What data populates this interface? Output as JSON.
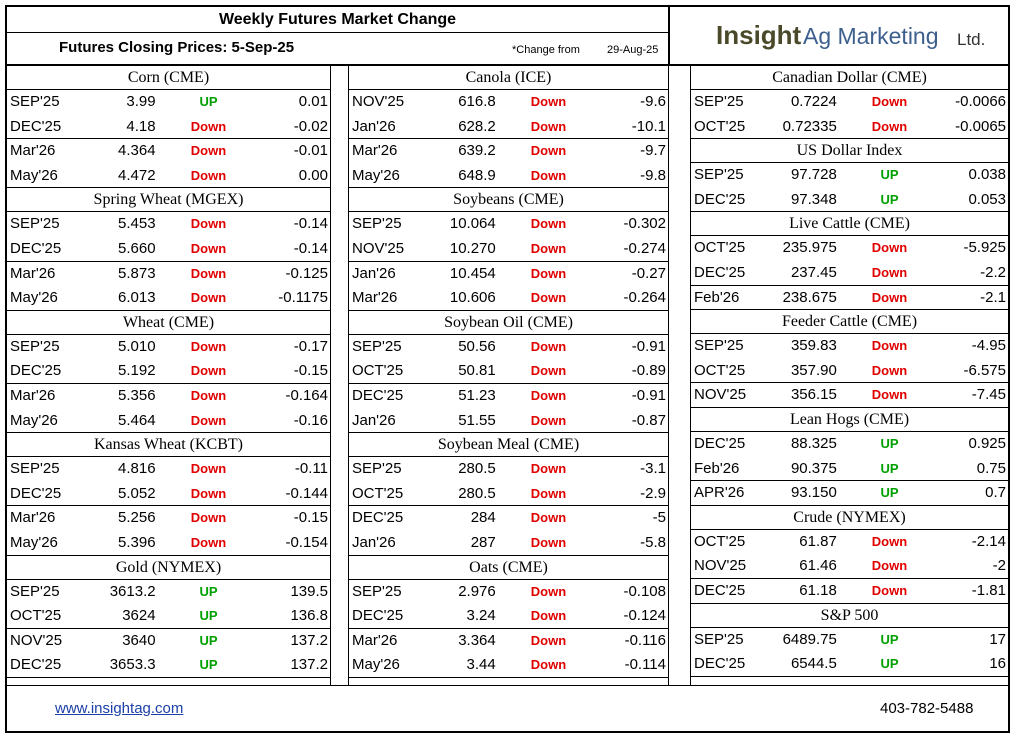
{
  "header": {
    "title": "Weekly Futures Market Change",
    "subtitle": "Futures Closing Prices:  5-Sep-25",
    "change_from": "*Change from",
    "change_date": "29-Aug-25",
    "logo_insight": "Insight",
    "logo_ag": "Ag Marketing",
    "logo_ltd": "Ltd."
  },
  "colors": {
    "up": "#00a000",
    "down": "#e00000",
    "logo_dark": "#4a4a2a",
    "logo_blue": "#3d5f8e",
    "link": "#1a3fa8"
  },
  "columns": [
    {
      "blocks": [
        {
          "title": "Corn (CME)",
          "rows": [
            {
              "month": "SEP'25",
              "price": "3.99",
              "dir": "UP",
              "chg": "0.01"
            },
            {
              "month": "DEC'25",
              "price": "4.18",
              "dir": "Down",
              "chg": "-0.02"
            },
            {
              "month": "Mar'26",
              "price": "4.364",
              "dir": "Down",
              "chg": "-0.01"
            },
            {
              "month": "May'26",
              "price": "4.472",
              "dir": "Down",
              "chg": "0.00"
            }
          ]
        },
        {
          "title": "Spring Wheat (MGEX)",
          "rows": [
            {
              "month": "SEP'25",
              "price": "5.453",
              "dir": "Down",
              "chg": "-0.14"
            },
            {
              "month": "DEC'25",
              "price": "5.660",
              "dir": "Down",
              "chg": "-0.14"
            },
            {
              "month": "Mar'26",
              "price": "5.873",
              "dir": "Down",
              "chg": "-0.125"
            },
            {
              "month": "May'26",
              "price": "6.013",
              "dir": "Down",
              "chg": "-0.1175"
            }
          ]
        },
        {
          "title": "Wheat (CME)",
          "rows": [
            {
              "month": "SEP'25",
              "price": "5.010",
              "dir": "Down",
              "chg": "-0.17"
            },
            {
              "month": "DEC'25",
              "price": "5.192",
              "dir": "Down",
              "chg": "-0.15"
            },
            {
              "month": "Mar'26",
              "price": "5.356",
              "dir": "Down",
              "chg": "-0.164"
            },
            {
              "month": "May'26",
              "price": "5.464",
              "dir": "Down",
              "chg": "-0.16"
            }
          ]
        },
        {
          "title": "Kansas Wheat (KCBT)",
          "rows": [
            {
              "month": "SEP'25",
              "price": "4.816",
              "dir": "Down",
              "chg": "-0.11"
            },
            {
              "month": "DEC'25",
              "price": "5.052",
              "dir": "Down",
              "chg": "-0.144"
            },
            {
              "month": "Mar'26",
              "price": "5.256",
              "dir": "Down",
              "chg": "-0.15"
            },
            {
              "month": "May'26",
              "price": "5.396",
              "dir": "Down",
              "chg": "-0.154"
            }
          ]
        },
        {
          "title": "Gold (NYMEX)",
          "rows": [
            {
              "month": "SEP'25",
              "price": "3613.2",
              "dir": "UP",
              "chg": "139.5"
            },
            {
              "month": "OCT'25",
              "price": "3624",
              "dir": "UP",
              "chg": "136.8"
            },
            {
              "month": "NOV'25",
              "price": "3640",
              "dir": "UP",
              "chg": "137.2"
            },
            {
              "month": "DEC'25",
              "price": "3653.3",
              "dir": "UP",
              "chg": "137.2"
            }
          ]
        }
      ]
    },
    {
      "blocks": [
        {
          "title": "Canola (ICE)",
          "rows": [
            {
              "month": "NOV'25",
              "price": "616.8",
              "dir": "Down",
              "chg": "-9.6"
            },
            {
              "month": "Jan'26",
              "price": "628.2",
              "dir": "Down",
              "chg": "-10.1"
            },
            {
              "month": "Mar'26",
              "price": "639.2",
              "dir": "Down",
              "chg": "-9.7"
            },
            {
              "month": "May'26",
              "price": "648.9",
              "dir": "Down",
              "chg": "-9.8"
            }
          ]
        },
        {
          "title": "Soybeans (CME)",
          "rows": [
            {
              "month": "SEP'25",
              "price": "10.064",
              "dir": "Down",
              "chg": "-0.302"
            },
            {
              "month": "NOV'25",
              "price": "10.270",
              "dir": "Down",
              "chg": "-0.274"
            },
            {
              "month": "Jan'26",
              "price": "10.454",
              "dir": "Down",
              "chg": "-0.27"
            },
            {
              "month": "Mar'26",
              "price": "10.606",
              "dir": "Down",
              "chg": "-0.264"
            }
          ]
        },
        {
          "title": "Soybean Oil (CME)",
          "rows": [
            {
              "month": "SEP'25",
              "price": "50.56",
              "dir": "Down",
              "chg": "-0.91"
            },
            {
              "month": "OCT'25",
              "price": "50.81",
              "dir": "Down",
              "chg": "-0.89"
            },
            {
              "month": "DEC'25",
              "price": "51.23",
              "dir": "Down",
              "chg": "-0.91"
            },
            {
              "month": "Jan'26",
              "price": "51.55",
              "dir": "Down",
              "chg": "-0.87"
            }
          ]
        },
        {
          "title": "Soybean Meal (CME)",
          "rows": [
            {
              "month": "SEP'25",
              "price": "280.5",
              "dir": "Down",
              "chg": "-3.1"
            },
            {
              "month": "OCT'25",
              "price": "280.5",
              "dir": "Down",
              "chg": "-2.9"
            },
            {
              "month": "DEC'25",
              "price": "284",
              "dir": "Down",
              "chg": "-5"
            },
            {
              "month": "Jan'26",
              "price": "287",
              "dir": "Down",
              "chg": "-5.8"
            }
          ]
        },
        {
          "title": "Oats (CME)",
          "rows": [
            {
              "month": "SEP'25",
              "price": "2.976",
              "dir": "Down",
              "chg": "-0.108"
            },
            {
              "month": "DEC'25",
              "price": "3.24",
              "dir": "Down",
              "chg": "-0.124"
            },
            {
              "month": "Mar'26",
              "price": "3.364",
              "dir": "Down",
              "chg": "-0.116"
            },
            {
              "month": "May'26",
              "price": "3.44",
              "dir": "Down",
              "chg": "-0.114"
            }
          ]
        }
      ]
    },
    {
      "blocks": [
        {
          "title": "Canadian Dollar (CME)",
          "rows": [
            {
              "month": "SEP'25",
              "price": "0.7224",
              "dir": "Down",
              "chg": "-0.0066"
            },
            {
              "month": "OCT'25",
              "price": "0.72335",
              "dir": "Down",
              "chg": "-0.0065"
            }
          ]
        },
        {
          "title": "US Dollar Index",
          "rows": [
            {
              "month": "SEP'25",
              "price": "97.728",
              "dir": "UP",
              "chg": "0.038"
            },
            {
              "month": "DEC'25",
              "price": "97.348",
              "dir": "UP",
              "chg": "0.053"
            }
          ]
        },
        {
          "title": "Live Cattle (CME)",
          "rows": [
            {
              "month": "OCT'25",
              "price": "235.975",
              "dir": "Down",
              "chg": "-5.925"
            },
            {
              "month": "DEC'25",
              "price": "237.45",
              "dir": "Down",
              "chg": "-2.2"
            },
            {
              "month": "Feb'26",
              "price": "238.675",
              "dir": "Down",
              "chg": "-2.1"
            }
          ]
        },
        {
          "title": "Feeder Cattle (CME)",
          "rows": [
            {
              "month": "SEP'25",
              "price": "359.83",
              "dir": "Down",
              "chg": "-4.95"
            },
            {
              "month": "OCT'25",
              "price": "357.90",
              "dir": "Down",
              "chg": "-6.575"
            },
            {
              "month": "NOV'25",
              "price": "356.15",
              "dir": "Down",
              "chg": "-7.45"
            }
          ]
        },
        {
          "title": "Lean Hogs (CME)",
          "rows": [
            {
              "month": "DEC'25",
              "price": "88.325",
              "dir": "UP",
              "chg": "0.925"
            },
            {
              "month": "Feb'26",
              "price": "90.375",
              "dir": "UP",
              "chg": "0.75"
            },
            {
              "month": "APR'26",
              "price": "93.150",
              "dir": "UP",
              "chg": "0.7"
            }
          ]
        },
        {
          "title": "Crude (NYMEX)",
          "rows": [
            {
              "month": "OCT'25",
              "price": "61.87",
              "dir": "Down",
              "chg": "-2.14"
            },
            {
              "month": "NOV'25",
              "price": "61.46",
              "dir": "Down",
              "chg": "-2"
            },
            {
              "month": "DEC'25",
              "price": "61.18",
              "dir": "Down",
              "chg": "-1.81"
            }
          ]
        },
        {
          "title": "S&P 500",
          "rows": [
            {
              "month": "SEP'25",
              "price": "6489.75",
              "dir": "UP",
              "chg": "17"
            },
            {
              "month": "DEC'25",
              "price": "6544.5",
              "dir": "UP",
              "chg": "16"
            }
          ]
        }
      ]
    }
  ],
  "footer": {
    "website": "www.insightag.com",
    "phone": "403-782-5488"
  }
}
